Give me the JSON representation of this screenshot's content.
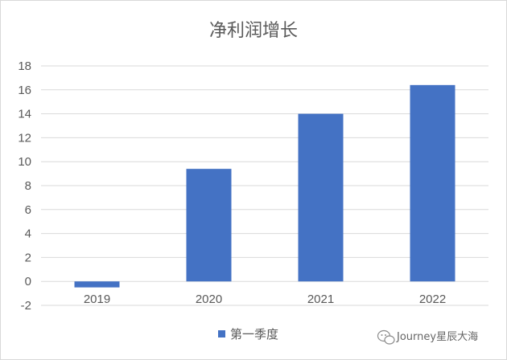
{
  "chart_data": {
    "type": "bar",
    "title": "净利润增长",
    "categories": [
      "2019",
      "2020",
      "2021",
      "2022"
    ],
    "series": [
      {
        "name": "第一季度",
        "values": [
          -0.5,
          9.4,
          14.0,
          16.4
        ],
        "color": "#4472c4"
      }
    ],
    "xlabel": "",
    "ylabel": "",
    "ylim": [
      -2,
      18
    ],
    "yticks": [
      "-2",
      "0",
      "2",
      "4",
      "6",
      "8",
      "10",
      "12",
      "14",
      "16",
      "18"
    ],
    "grid": true,
    "legend_position": "bottom"
  },
  "watermark": {
    "text": "Journey星辰大海",
    "icon": "wechat-icon"
  },
  "colors": {
    "bar": "#4472c4",
    "grid": "#d9d9d9",
    "text": "#595959"
  }
}
